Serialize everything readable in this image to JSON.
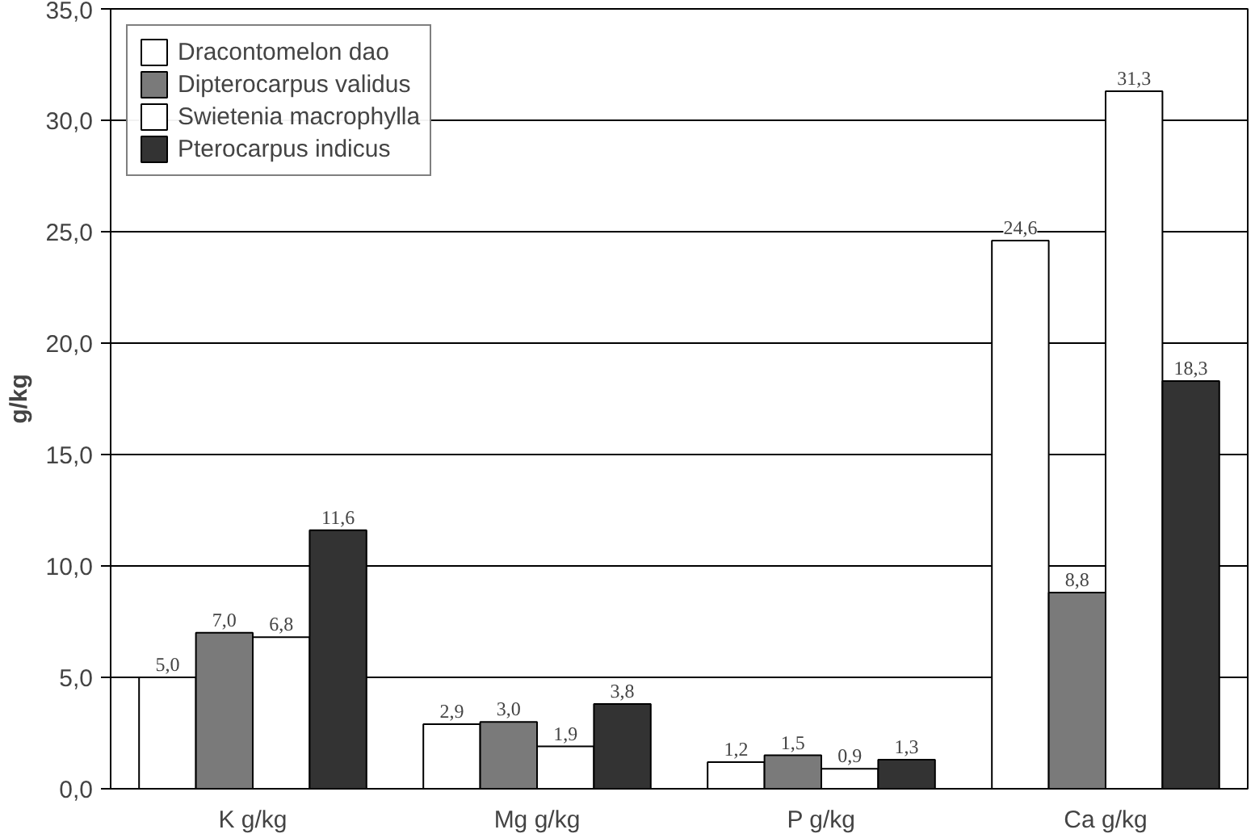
{
  "chart_data": {
    "type": "bar",
    "ylabel": "g/kg",
    "categories": [
      "K g/kg",
      "Mg g/kg",
      "P g/kg",
      "Ca g/kg"
    ],
    "series": [
      {
        "name": "Dracontomelon dao",
        "color": "#ffffff",
        "values": [
          5.0,
          2.9,
          1.2,
          24.6
        ],
        "value_labels": [
          "5,0",
          "2,9",
          "1,2",
          "24,6"
        ]
      },
      {
        "name": "Dipterocarpus validus",
        "color": "#7a7a7a",
        "values": [
          7.0,
          3.0,
          1.5,
          8.8
        ],
        "value_labels": [
          "7,0",
          "3,0",
          "1,5",
          "8,8"
        ]
      },
      {
        "name": "Swietenia macrophylla",
        "color": "#ffffff",
        "values": [
          6.8,
          1.9,
          0.9,
          31.3
        ],
        "value_labels": [
          "6,8",
          "1,9",
          "0,9",
          "31,3"
        ]
      },
      {
        "name": "Pterocarpus indicus",
        "color": "#333333",
        "values": [
          11.6,
          3.8,
          1.3,
          18.3
        ],
        "value_labels": [
          "11,6",
          "3,8",
          "1,3",
          "18,3"
        ]
      }
    ],
    "ylim": [
      0,
      35
    ],
    "yticks": [
      {
        "value": 0,
        "label": "0,0"
      },
      {
        "value": 5,
        "label": "5,0"
      },
      {
        "value": 10,
        "label": "10,0"
      },
      {
        "value": 15,
        "label": "15,0"
      },
      {
        "value": 20,
        "label": "20,0"
      },
      {
        "value": 25,
        "label": "25,0"
      },
      {
        "value": 30,
        "label": "30,0"
      },
      {
        "value": 35,
        "label": "35,0"
      }
    ],
    "grid": "y",
    "legend": "top left"
  }
}
